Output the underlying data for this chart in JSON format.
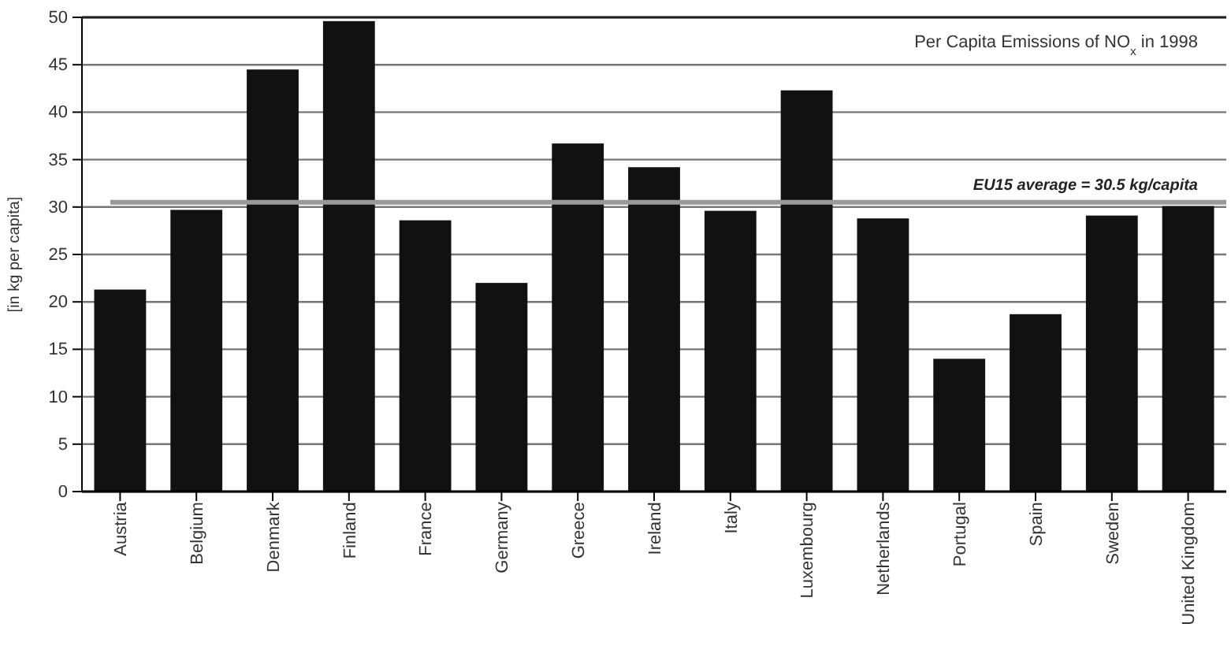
{
  "chart_data": {
    "type": "bar",
    "title": "Per Capita Emissions of NO$_{x}$ in 1998",
    "ylabel": "[in kg per capita]",
    "categories": [
      "Austria",
      "Belgium",
      "Denmark",
      "Finland",
      "France",
      "Germany",
      "Greece",
      "Ireland",
      "Italy",
      "Luxembourg",
      "Netherlands",
      "Portugal",
      "Spain",
      "Sweden",
      "United Kingdom"
    ],
    "values": [
      21.3,
      29.7,
      44.5,
      49.6,
      28.6,
      22,
      36.7,
      34.2,
      29.6,
      42.3,
      28.8,
      14,
      18.7,
      29.1,
      30.1
    ],
    "color": "#111111",
    "ylim": [
      0,
      50
    ],
    "yticks": [
      0,
      5,
      10,
      15,
      20,
      25,
      30,
      35,
      40,
      45,
      50
    ],
    "grid": "y",
    "ref_lines": [
      {
        "axis": "y",
        "value": 30.5,
        "label": "EU15 average = 30.5 kg/capita",
        "color": "#999999"
      }
    ]
  }
}
